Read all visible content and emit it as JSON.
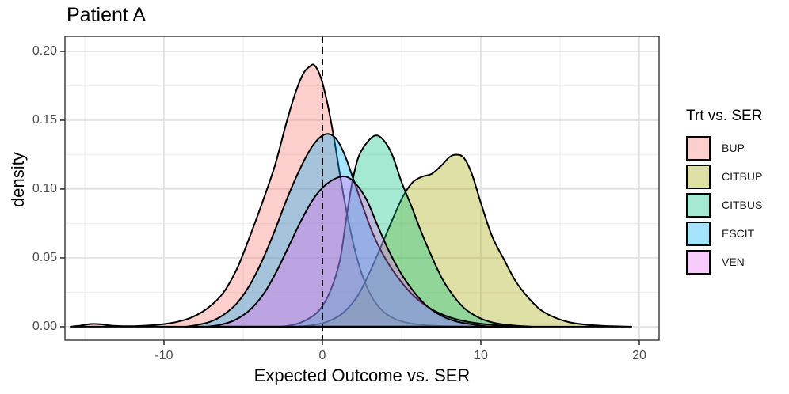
{
  "title": "Patient A",
  "axes": {
    "x_label": "Expected Outcome vs. SER",
    "y_label": "density",
    "x_ticks": [
      {
        "label": "-10",
        "value": -10
      },
      {
        "label": "0",
        "value": 0
      },
      {
        "label": "10",
        "value": 10
      },
      {
        "label": "20",
        "value": 20
      }
    ],
    "x_minor": [
      -15,
      -5,
      5,
      15
    ],
    "y_ticks": [
      {
        "label": "0.00",
        "value": 0
      },
      {
        "label": "0.05",
        "value": 0.05
      },
      {
        "label": "0.10",
        "value": 0.1
      },
      {
        "label": "0.15",
        "value": 0.15
      },
      {
        "label": "0.20",
        "value": 0.2
      }
    ],
    "y_minor": [
      0.025,
      0.075,
      0.125,
      0.175
    ]
  },
  "legend": {
    "title": "Trt vs. SER",
    "items": [
      {
        "label": "BUP",
        "color": "#F8766D"
      },
      {
        "label": "CITBUP",
        "color": "#A3A500"
      },
      {
        "label": "CITBUS",
        "color": "#00BF7D"
      },
      {
        "label": "ESCIT",
        "color": "#00B0F6"
      },
      {
        "label": "VEN",
        "color": "#E76BF3"
      }
    ]
  },
  "chart_data": {
    "type": "area",
    "subtype": "overlapping-density-curves",
    "title": "Patient A",
    "xlabel": "Expected Outcome vs. SER",
    "ylabel": "density",
    "xlim": [
      -16.25,
      21.25
    ],
    "ylim": [
      -0.0098,
      0.2109
    ],
    "grid": "major-and-minor",
    "legend_position": "right",
    "legend_title": "Trt vs. SER",
    "vline": {
      "x": 0,
      "style": "dashed",
      "color": "#000000"
    },
    "fill_opacity": 0.35,
    "stroke_color": "#000000",
    "stroke_width": 2,
    "series": [
      {
        "name": "BUP",
        "color": "#F8766D",
        "peak": {
          "x": -0.5,
          "density": 0.19
        },
        "points": [
          [
            -15.9,
            0
          ],
          [
            -15.3,
            0.0008
          ],
          [
            -14.6,
            0.002
          ],
          [
            -14.0,
            0.0018
          ],
          [
            -13.3,
            0.0008
          ],
          [
            -12.3,
            0.0004
          ],
          [
            -11.3,
            0.0007
          ],
          [
            -10.3,
            0.0015
          ],
          [
            -9.3,
            0.0032
          ],
          [
            -8.3,
            0.0065
          ],
          [
            -7.3,
            0.013
          ],
          [
            -6.3,
            0.024
          ],
          [
            -5.4,
            0.042
          ],
          [
            -4.6,
            0.065
          ],
          [
            -3.8,
            0.09
          ],
          [
            -3.0,
            0.117
          ],
          [
            -2.3,
            0.147
          ],
          [
            -1.7,
            0.17
          ],
          [
            -1.2,
            0.184
          ],
          [
            -0.8,
            0.189
          ],
          [
            -0.5,
            0.19
          ],
          [
            -0.1,
            0.181
          ],
          [
            0.3,
            0.163
          ],
          [
            0.7,
            0.139
          ],
          [
            1.1,
            0.111
          ],
          [
            1.5,
            0.085
          ],
          [
            2.0,
            0.058
          ],
          [
            2.5,
            0.038
          ],
          [
            3.1,
            0.022
          ],
          [
            3.8,
            0.0115
          ],
          [
            4.6,
            0.0055
          ],
          [
            5.4,
            0.0028
          ],
          [
            6.4,
            0.0012
          ],
          [
            7.4,
            0.0005
          ],
          [
            8.5,
            0
          ]
        ]
      },
      {
        "name": "CITBUP",
        "color": "#A3A500",
        "peak": {
          "x": 8.4,
          "density": 0.125
        },
        "points": [
          [
            -1.6,
            0
          ],
          [
            -0.6,
            0.0012
          ],
          [
            0.4,
            0.004
          ],
          [
            1.3,
            0.01
          ],
          [
            2.2,
            0.022
          ],
          [
            3.0,
            0.04
          ],
          [
            3.8,
            0.061
          ],
          [
            4.5,
            0.08
          ],
          [
            5.1,
            0.095
          ],
          [
            5.7,
            0.105
          ],
          [
            6.3,
            0.109
          ],
          [
            6.9,
            0.111
          ],
          [
            7.5,
            0.117
          ],
          [
            8.0,
            0.123
          ],
          [
            8.4,
            0.125
          ],
          [
            8.9,
            0.123
          ],
          [
            9.4,
            0.112
          ],
          [
            10.0,
            0.09
          ],
          [
            10.7,
            0.066
          ],
          [
            11.5,
            0.048
          ],
          [
            12.2,
            0.033
          ],
          [
            13.0,
            0.021
          ],
          [
            13.8,
            0.012
          ],
          [
            14.7,
            0.0065
          ],
          [
            15.6,
            0.0032
          ],
          [
            16.6,
            0.0015
          ],
          [
            17.6,
            0.0007
          ],
          [
            18.5,
            0.0003
          ],
          [
            19.5,
            0
          ]
        ]
      },
      {
        "name": "CITBUS",
        "color": "#00BF7D",
        "peak": {
          "x": 3.4,
          "density": 0.139
        },
        "points": [
          [
            -2.6,
            0
          ],
          [
            -1.8,
            0.0015
          ],
          [
            -1.0,
            0.005
          ],
          [
            -0.2,
            0.012
          ],
          [
            0.5,
            0.026
          ],
          [
            1.1,
            0.048
          ],
          [
            1.5,
            0.078
          ],
          [
            1.9,
            0.106
          ],
          [
            2.3,
            0.124
          ],
          [
            2.9,
            0.135
          ],
          [
            3.4,
            0.139
          ],
          [
            3.9,
            0.135
          ],
          [
            4.4,
            0.125
          ],
          [
            5.0,
            0.105
          ],
          [
            5.6,
            0.088
          ],
          [
            6.2,
            0.07
          ],
          [
            6.9,
            0.051
          ],
          [
            7.6,
            0.034
          ],
          [
            8.3,
            0.022
          ],
          [
            9.0,
            0.013
          ],
          [
            9.8,
            0.007
          ],
          [
            10.6,
            0.0035
          ],
          [
            11.5,
            0.0015
          ],
          [
            12.4,
            0.0006
          ],
          [
            13.2,
            0
          ]
        ]
      },
      {
        "name": "ESCIT",
        "color": "#00B0F6",
        "peak": {
          "x": 0.4,
          "density": 0.14
        },
        "points": [
          [
            -8.6,
            0
          ],
          [
            -7.8,
            0.0015
          ],
          [
            -7.0,
            0.004
          ],
          [
            -6.2,
            0.009
          ],
          [
            -5.4,
            0.017
          ],
          [
            -4.6,
            0.03
          ],
          [
            -3.8,
            0.048
          ],
          [
            -3.0,
            0.07
          ],
          [
            -2.2,
            0.094
          ],
          [
            -1.4,
            0.115
          ],
          [
            -0.7,
            0.13
          ],
          [
            -0.1,
            0.138
          ],
          [
            0.4,
            0.14
          ],
          [
            0.9,
            0.136
          ],
          [
            1.4,
            0.125
          ],
          [
            1.9,
            0.109
          ],
          [
            2.5,
            0.089
          ],
          [
            3.1,
            0.07
          ],
          [
            3.8,
            0.053
          ],
          [
            4.5,
            0.04
          ],
          [
            5.3,
            0.028
          ],
          [
            6.1,
            0.019
          ],
          [
            7.0,
            0.012
          ],
          [
            8.0,
            0.007
          ],
          [
            9.0,
            0.004
          ],
          [
            10.0,
            0.0022
          ],
          [
            11.0,
            0.0011
          ],
          [
            12.1,
            0
          ]
        ]
      },
      {
        "name": "VEN",
        "color": "#E76BF3",
        "peak": {
          "x": 1.3,
          "density": 0.109
        },
        "points": [
          [
            -7.3,
            0
          ],
          [
            -6.4,
            0.0015
          ],
          [
            -5.5,
            0.005
          ],
          [
            -4.6,
            0.012
          ],
          [
            -3.7,
            0.024
          ],
          [
            -2.9,
            0.04
          ],
          [
            -2.1,
            0.059
          ],
          [
            -1.3,
            0.078
          ],
          [
            -0.5,
            0.094
          ],
          [
            0.2,
            0.103
          ],
          [
            0.9,
            0.108
          ],
          [
            1.5,
            0.109
          ],
          [
            2.1,
            0.104
          ],
          [
            2.8,
            0.092
          ],
          [
            3.5,
            0.073
          ],
          [
            4.2,
            0.055
          ],
          [
            5.0,
            0.038
          ],
          [
            5.8,
            0.025
          ],
          [
            6.6,
            0.015
          ],
          [
            7.5,
            0.008
          ],
          [
            8.4,
            0.004
          ],
          [
            9.4,
            0.0018
          ],
          [
            10.5,
            0
          ]
        ]
      }
    ]
  }
}
